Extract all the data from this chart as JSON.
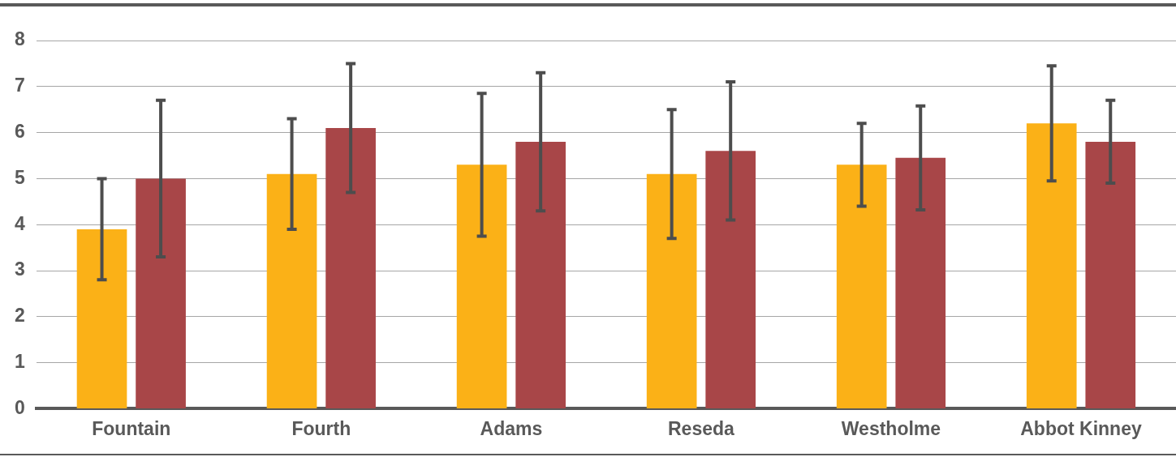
{
  "chart_data": {
    "type": "bar",
    "categories": [
      "Fountain",
      "Fourth",
      "Adams",
      "Reseda",
      "Westholme",
      "Abbot Kinney"
    ],
    "series": [
      {
        "color": "#fbb117",
        "values": [
          3.9,
          5.1,
          5.3,
          5.1,
          5.3,
          6.2
        ],
        "errors": [
          1.1,
          1.2,
          1.55,
          1.4,
          0.9,
          1.25
        ]
      },
      {
        "color": "#a84648",
        "values": [
          5.0,
          6.1,
          5.8,
          5.6,
          5.45,
          5.8
        ],
        "errors": [
          1.7,
          1.4,
          1.5,
          1.5,
          1.13,
          0.9
        ]
      }
    ],
    "ylim": [
      0,
      8
    ],
    "yticks": [
      0,
      1,
      2,
      3,
      4,
      5,
      6,
      7,
      8
    ],
    "grid": "y",
    "legend": false
  }
}
